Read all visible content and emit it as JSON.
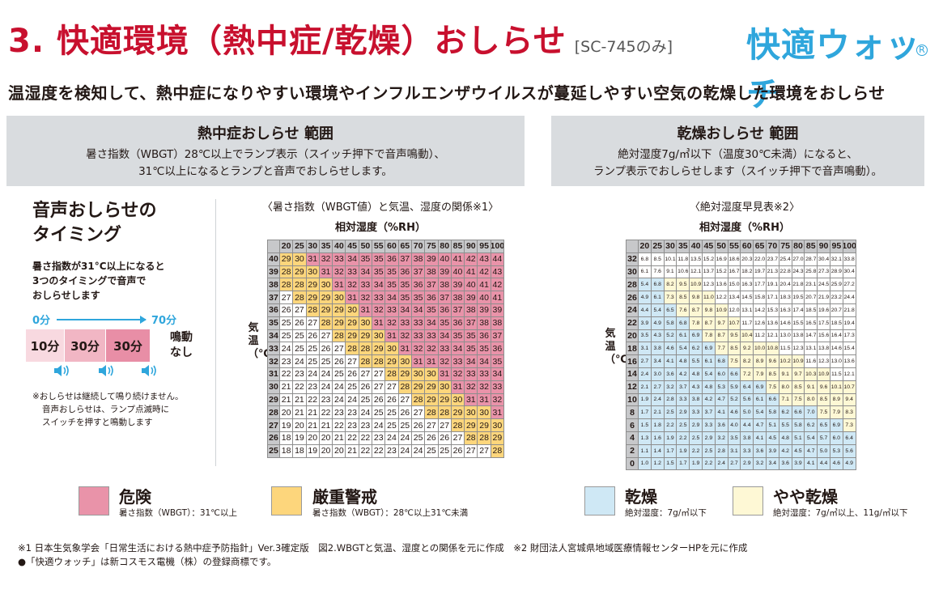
{
  "header": {
    "title": "3. 快適環境（熱中症/乾燥）おしらせ",
    "model_note": "[SC-745のみ]",
    "brand": "快適ウォッチ",
    "brand_mark": "R"
  },
  "subtitle": "温湿度を検知して、熱中症になりやすい環境やインフルエンザウイルスが蔓延しやすい空気の乾燥した環境をおしらせ",
  "heat_panel": {
    "title": "熱中症おしらせ 範囲",
    "desc_line1": "暑さ指数（WBGT）28℃以上でランプ表示（スイッチ押下で音声鳴動）、",
    "desc_line2": "31℃以上になるとランプと音声でおしらせします。"
  },
  "dry_panel": {
    "title": "乾燥おしらせ 範囲",
    "desc_line1": "絶対湿度7g/㎥以下（温度30℃未満）になると、",
    "desc_line2": "ランプ表示でおしらせします（スイッチ押下で音声鳴動）。"
  },
  "timing": {
    "title_line1": "音声おしらせの",
    "title_line2": "タイミング",
    "desc_line1": "暑さ指数が31°C以上になると",
    "desc_line2": "3つのタイミングで音声で",
    "desc_line3": "おしらせします",
    "start": "0分",
    "end": "70分",
    "segments": [
      "10分",
      "30分",
      "30分"
    ],
    "no_sound_line1": "鳴動",
    "no_sound_line2": "なし",
    "note_line1": "※おしらせは継続して鳴り続けません。",
    "note_line2": "音声おしらせは、ランプ点滅時に",
    "note_line3": "スイッチを押すと鳴動します"
  },
  "wbgt_table": {
    "caption": "〈暑さ指数（WBGT値）と気温、湿度の関係※1〉",
    "humidity_label": "相対湿度（%RH）",
    "temp_label": "気温（℃）",
    "humidity": [
      20,
      25,
      30,
      35,
      40,
      45,
      50,
      55,
      60,
      65,
      70,
      75,
      80,
      85,
      90,
      95,
      100
    ],
    "temps": [
      40,
      39,
      38,
      37,
      36,
      35,
      34,
      33,
      32,
      31,
      30,
      29,
      28,
      27,
      26,
      25
    ],
    "rows": [
      [
        29,
        30,
        31,
        32,
        33,
        34,
        35,
        35,
        36,
        37,
        38,
        39,
        40,
        41,
        42,
        43,
        44
      ],
      [
        28,
        29,
        30,
        31,
        32,
        33,
        34,
        35,
        35,
        36,
        37,
        38,
        39,
        40,
        41,
        42,
        43
      ],
      [
        28,
        28,
        29,
        30,
        31,
        32,
        33,
        34,
        35,
        35,
        36,
        37,
        38,
        39,
        40,
        41,
        42
      ],
      [
        27,
        28,
        29,
        29,
        30,
        31,
        32,
        33,
        34,
        35,
        35,
        36,
        37,
        38,
        39,
        40,
        41
      ],
      [
        26,
        27,
        28,
        29,
        29,
        30,
        31,
        32,
        33,
        34,
        34,
        35,
        36,
        37,
        38,
        39,
        39
      ],
      [
        25,
        26,
        27,
        28,
        29,
        29,
        30,
        31,
        32,
        33,
        33,
        34,
        35,
        36,
        37,
        38,
        38
      ],
      [
        25,
        25,
        26,
        27,
        28,
        29,
        29,
        30,
        31,
        32,
        33,
        33,
        34,
        35,
        35,
        36,
        37
      ],
      [
        24,
        25,
        25,
        26,
        27,
        28,
        28,
        29,
        30,
        31,
        32,
        32,
        33,
        34,
        35,
        35,
        36
      ],
      [
        23,
        24,
        25,
        25,
        26,
        27,
        28,
        28,
        29,
        30,
        31,
        31,
        32,
        33,
        34,
        34,
        35
      ],
      [
        22,
        23,
        24,
        24,
        25,
        26,
        27,
        27,
        28,
        29,
        30,
        30,
        31,
        32,
        33,
        33,
        34
      ],
      [
        21,
        22,
        23,
        24,
        24,
        25,
        26,
        27,
        27,
        28,
        29,
        29,
        30,
        31,
        32,
        32,
        33
      ],
      [
        21,
        21,
        22,
        23,
        24,
        24,
        25,
        26,
        26,
        27,
        28,
        29,
        29,
        30,
        31,
        31,
        32
      ],
      [
        20,
        21,
        21,
        22,
        23,
        23,
        24,
        25,
        25,
        26,
        27,
        28,
        28,
        29,
        30,
        30,
        31
      ],
      [
        19,
        20,
        21,
        21,
        22,
        23,
        23,
        24,
        25,
        25,
        26,
        27,
        27,
        28,
        29,
        29,
        30
      ],
      [
        18,
        19,
        20,
        20,
        21,
        22,
        22,
        23,
        24,
        24,
        25,
        26,
        26,
        27,
        28,
        28,
        29
      ],
      [
        18,
        18,
        19,
        20,
        20,
        21,
        22,
        22,
        23,
        24,
        24,
        25,
        25,
        26,
        27,
        27,
        28
      ]
    ]
  },
  "ah_table": {
    "caption": "〈絶対湿度早見表※2〉",
    "humidity_label": "相対湿度（%RH）",
    "temp_label": "気温（℃）",
    "humidity": [
      20,
      25,
      30,
      35,
      40,
      45,
      50,
      55,
      60,
      65,
      70,
      75,
      80,
      85,
      90,
      95,
      100
    ],
    "temps": [
      32,
      30,
      28,
      26,
      24,
      22,
      20,
      18,
      16,
      14,
      12,
      10,
      8,
      6,
      4,
      2,
      0
    ],
    "rows": [
      [
        "6.8",
        "8.5",
        "10.1",
        "11.8",
        "13.5",
        "15.2",
        "16.9",
        "18.6",
        "20.3",
        "22.0",
        "23.7",
        "25.4",
        "27.0",
        "28.7",
        "30.4",
        "32.1",
        "33.8"
      ],
      [
        "6.1",
        "7.6",
        "9.1",
        "10.6",
        "12.1",
        "13.7",
        "15.2",
        "16.7",
        "18.2",
        "19.7",
        "21.3",
        "22.8",
        "24.3",
        "25.8",
        "27.3",
        "28.9",
        "30.4"
      ],
      [
        "5.4",
        "6.8",
        "8.2",
        "9.5",
        "10.9",
        "12.3",
        "13.6",
        "15.0",
        "16.3",
        "17.7",
        "19.1",
        "20.4",
        "21.8",
        "23.1",
        "24.5",
        "25.9",
        "27.2"
      ],
      [
        "4.9",
        "6.1",
        "7.3",
        "8.5",
        "9.8",
        "11.0",
        "12.2",
        "13.4",
        "14.5",
        "15.8",
        "17.1",
        "18.3",
        "19.5",
        "20.7",
        "21.9",
        "23.2",
        "24.4"
      ],
      [
        "4.4",
        "5.4",
        "6.5",
        "7.6",
        "8.7",
        "9.8",
        "10.9",
        "12.0",
        "13.1",
        "14.2",
        "15.3",
        "16.3",
        "17.4",
        "18.5",
        "19.6",
        "20.7",
        "21.8"
      ],
      [
        "3.9",
        "4.9",
        "5.8",
        "6.8",
        "7.8",
        "8.7",
        "9.7",
        "10.7",
        "11.7",
        "12.6",
        "13.6",
        "14.6",
        "15.5",
        "16.5",
        "17.5",
        "18.5",
        "19.4"
      ],
      [
        "3.5",
        "4.3",
        "5.2",
        "6.1",
        "6.9",
        "7.8",
        "8.7",
        "9.5",
        "10.4",
        "11.2",
        "12.1",
        "13.0",
        "13.8",
        "14.7",
        "15.6",
        "16.4",
        "17.3"
      ],
      [
        "3.1",
        "3.8",
        "4.6",
        "5.4",
        "6.2",
        "6.9",
        "7.7",
        "8.5",
        "9.2",
        "10.0",
        "10.8",
        "11.5",
        "12.3",
        "13.1",
        "13.8",
        "14.6",
        "15.4"
      ],
      [
        "2.7",
        "3.4",
        "4.1",
        "4.8",
        "5.5",
        "6.1",
        "6.8",
        "7.5",
        "8.2",
        "8.9",
        "9.6",
        "10.2",
        "10.9",
        "11.6",
        "12.3",
        "13.0",
        "13.6"
      ],
      [
        "2.4",
        "3.0",
        "3.6",
        "4.2",
        "4.8",
        "5.4",
        "6.0",
        "6.6",
        "7.2",
        "7.9",
        "8.5",
        "9.1",
        "9.7",
        "10.3",
        "10.9",
        "11.5",
        "12.1"
      ],
      [
        "2.1",
        "2.7",
        "3.2",
        "3.7",
        "4.3",
        "4.8",
        "5.3",
        "5.9",
        "6.4",
        "6.9",
        "7.5",
        "8.0",
        "8.5",
        "9.1",
        "9.6",
        "10.1",
        "10.7"
      ],
      [
        "1.9",
        "2.4",
        "2.8",
        "3.3",
        "3.8",
        "4.2",
        "4.7",
        "5.2",
        "5.6",
        "6.1",
        "6.6",
        "7.1",
        "7.5",
        "8.0",
        "8.5",
        "8.9",
        "9.4"
      ],
      [
        "1.7",
        "2.1",
        "2.5",
        "2.9",
        "3.3",
        "3.7",
        "4.1",
        "4.6",
        "5.0",
        "5.4",
        "5.8",
        "6.2",
        "6.6",
        "7.0",
        "7.5",
        "7.9",
        "8.3"
      ],
      [
        "1.5",
        "1.8",
        "2.2",
        "2.5",
        "2.9",
        "3.3",
        "3.6",
        "4.0",
        "4.4",
        "4.7",
        "5.1",
        "5.5",
        "5.8",
        "6.2",
        "6.5",
        "6.9",
        "7.3"
      ],
      [
        "1.3",
        "1.6",
        "1.9",
        "2.2",
        "2.5",
        "2.9",
        "3.2",
        "3.5",
        "3.8",
        "4.1",
        "4.5",
        "4.8",
        "5.1",
        "5.4",
        "5.7",
        "6.0",
        "6.4"
      ],
      [
        "1.1",
        "1.4",
        "1.7",
        "1.9",
        "2.2",
        "2.5",
        "2.8",
        "3.1",
        "3.3",
        "3.6",
        "3.9",
        "4.2",
        "4.5",
        "4.7",
        "5.0",
        "5.3",
        "5.6"
      ],
      [
        "1.0",
        "1.2",
        "1.5",
        "1.7",
        "1.9",
        "2.2",
        "2.4",
        "2.7",
        "2.9",
        "3.2",
        "3.4",
        "3.6",
        "3.9",
        "4.1",
        "4.4",
        "4.6",
        "4.9"
      ]
    ]
  },
  "legend": {
    "danger": {
      "name": "危険",
      "desc": "暑さ指数（WBGT）：31℃以上"
    },
    "severe": {
      "name": "厳重警戒",
      "desc": "暑さ指数（WBGT）：28℃以上31℃未満"
    },
    "dry": {
      "name": "乾燥",
      "desc": "絶対湿度：7g/㎥以下"
    },
    "slightly_dry": {
      "name": "やや乾燥",
      "desc": "絶対湿度：7g/㎥以上、11g/㎥以下"
    }
  },
  "colors": {
    "title_red": "#c8102e",
    "brand_blue": "#2fa6dc",
    "danger": "#e993a9",
    "severe": "#fdd67c",
    "normal": "#ffffff",
    "dry": "#cfe8f5",
    "slightly_dry": "#fef8d5"
  },
  "footnotes": {
    "line1": "※1 日本生気象学会「日常生活における熱中症予防指針」Ver.3確定版　図2.WBGTと気温、湿度との関係を元に作成　※2 財団法人宮城県地域医療情報センターHPを元に作成",
    "line2": "●「快適ウォッチ」は新コスモス電機（株）の登録商標です。"
  }
}
